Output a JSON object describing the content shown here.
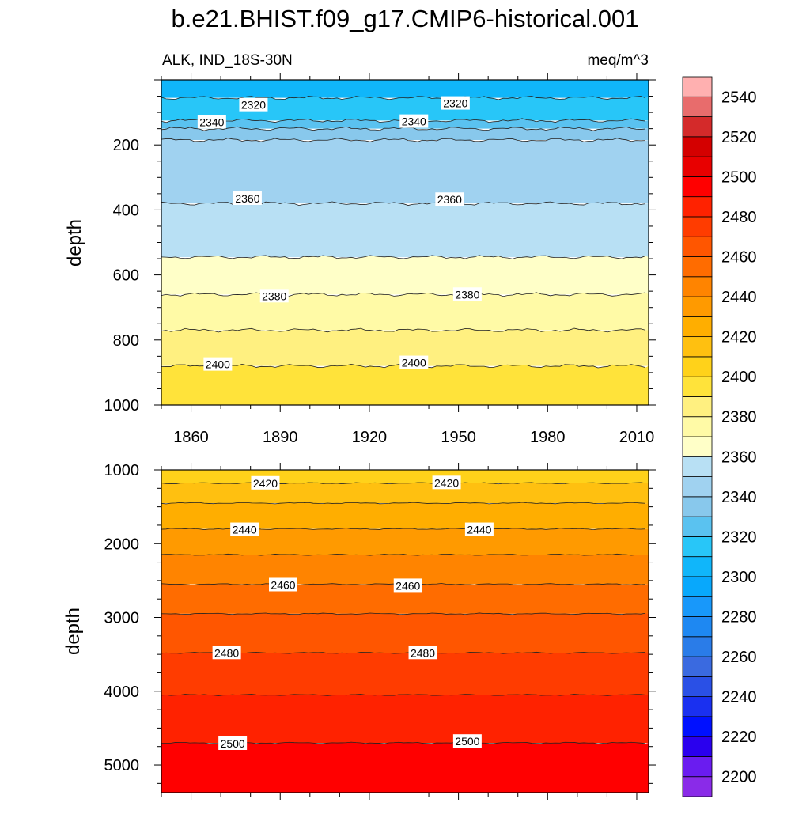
{
  "chart_data": {
    "type": "contour",
    "title": "b.e21.BHIST.f09_g17.CMIP6-historical.001",
    "left_subtitle": "ALK, IND_18S-30N",
    "right_subtitle": "meq/m^3",
    "ylabel": "depth",
    "colorbar": {
      "levels": [
        2200,
        2210,
        2220,
        2230,
        2240,
        2250,
        2260,
        2270,
        2280,
        2290,
        2300,
        2310,
        2320,
        2330,
        2340,
        2350,
        2360,
        2370,
        2380,
        2390,
        2400,
        2410,
        2420,
        2430,
        2440,
        2450,
        2460,
        2470,
        2480,
        2490,
        2500,
        2510,
        2520,
        2530,
        2540,
        2550
      ],
      "tick_labels": [
        "2200",
        "2220",
        "2240",
        "2260",
        "2280",
        "2300",
        "2320",
        "2340",
        "2360",
        "2380",
        "2400",
        "2420",
        "2440",
        "2460",
        "2480",
        "2500",
        "2520",
        "2540"
      ],
      "colors": [
        "#8a2be8",
        "#6a1cf0",
        "#2a00ee",
        "#0010ff",
        "#1a30f0",
        "#2a50e6",
        "#3a6ae0",
        "#2a7ce8",
        "#1e88f2",
        "#1898fa",
        "#08a8fc",
        "#10b6fa",
        "#28c6f8",
        "#5ac2f0",
        "#88c8ec",
        "#a0d2f0",
        "#b8e0f4",
        "#ffffc8",
        "#fffaa6",
        "#fff080",
        "#ffe33a",
        "#ffd21a",
        "#ffc010",
        "#ffae00",
        "#ff9a00",
        "#ff8400",
        "#ff6c00",
        "#ff5600",
        "#ff3c00",
        "#ff2200",
        "#ff0000",
        "#e80000",
        "#d40000",
        "#d42a2a",
        "#e86c6c",
        "#ffb0b0"
      ]
    },
    "panels": [
      {
        "name": "upper",
        "x_range": [
          1850,
          2014
        ],
        "y_range": [
          0,
          1000
        ],
        "y_reversed": true,
        "x_ticks": [
          "1860",
          "1890",
          "1920",
          "1950",
          "1980",
          "2010"
        ],
        "y_ticks": [
          "200",
          "400",
          "600",
          "800",
          "1000"
        ],
        "bands": [
          {
            "depth_top": 0,
            "value": 2315
          },
          {
            "depth_top": 55,
            "value": 2325
          },
          {
            "depth_top": 125,
            "value": 2335
          },
          {
            "depth_top": 150,
            "value": 2345
          },
          {
            "depth_top": 185,
            "value": 2355
          },
          {
            "depth_top": 380,
            "value": 2365
          },
          {
            "depth_top": 545,
            "value": 2375
          },
          {
            "depth_top": 660,
            "value": 2385
          },
          {
            "depth_top": 770,
            "value": 2395
          },
          {
            "depth_top": 880,
            "value": 2405
          }
        ],
        "contour_labels": [
          {
            "text": "2320",
            "year": 1881,
            "depth": 77
          },
          {
            "text": "2320",
            "year": 1949,
            "depth": 72
          },
          {
            "text": "2340",
            "year": 1867,
            "depth": 130
          },
          {
            "text": "2340",
            "year": 1935,
            "depth": 128
          },
          {
            "text": "2360",
            "year": 1879,
            "depth": 365
          },
          {
            "text": "2360",
            "year": 1947,
            "depth": 368
          },
          {
            "text": "2380",
            "year": 1888,
            "depth": 665
          },
          {
            "text": "2380",
            "year": 1953,
            "depth": 660
          },
          {
            "text": "2400",
            "year": 1869,
            "depth": 875
          },
          {
            "text": "2400",
            "year": 1935,
            "depth": 870
          }
        ]
      },
      {
        "name": "lower",
        "x_range": [
          1850,
          2014
        ],
        "y_range": [
          1000,
          5375
        ],
        "y_reversed": true,
        "y_ticks": [
          "1000",
          "2000",
          "3000",
          "4000",
          "5000"
        ],
        "bands": [
          {
            "depth_top": 1000,
            "value": 2415
          },
          {
            "depth_top": 1180,
            "value": 2425
          },
          {
            "depth_top": 1450,
            "value": 2435
          },
          {
            "depth_top": 1800,
            "value": 2445
          },
          {
            "depth_top": 2150,
            "value": 2455
          },
          {
            "depth_top": 2550,
            "value": 2465
          },
          {
            "depth_top": 2950,
            "value": 2475
          },
          {
            "depth_top": 3480,
            "value": 2485
          },
          {
            "depth_top": 4050,
            "value": 2495
          },
          {
            "depth_top": 4700,
            "value": 2505
          }
        ],
        "contour_labels": [
          {
            "text": "2420",
            "year": 1885,
            "depth": 1180
          },
          {
            "text": "2420",
            "year": 1946,
            "depth": 1175
          },
          {
            "text": "2440",
            "year": 1878,
            "depth": 1810
          },
          {
            "text": "2440",
            "year": 1957,
            "depth": 1810
          },
          {
            "text": "2460",
            "year": 1891,
            "depth": 2560
          },
          {
            "text": "2460",
            "year": 1933,
            "depth": 2570
          },
          {
            "text": "2480",
            "year": 1872,
            "depth": 3480
          },
          {
            "text": "2480",
            "year": 1938,
            "depth": 3480
          },
          {
            "text": "2500",
            "year": 1874,
            "depth": 4710
          },
          {
            "text": "2500",
            "year": 1953,
            "depth": 4680
          }
        ]
      }
    ]
  }
}
